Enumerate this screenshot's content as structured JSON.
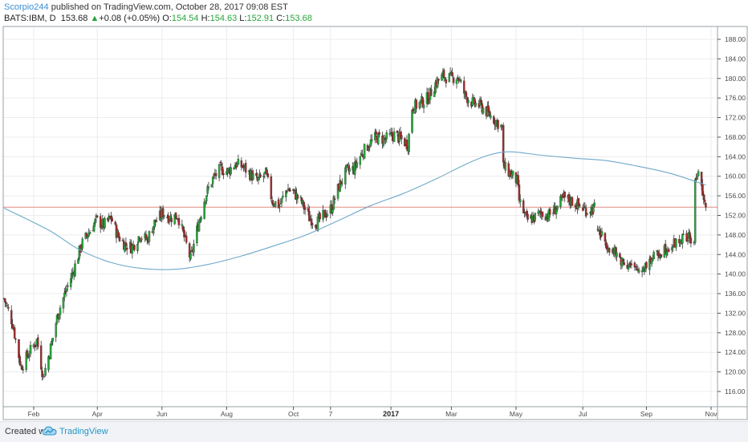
{
  "header": {
    "author": "Scorpio244",
    "publish_text": " published on TradingView.com, October 28, 2017 09:08 EST",
    "symbol": "BATS:IBM, D",
    "last": "153.68",
    "change_arrow": "▲",
    "change": "+0.08 (+0.05%)",
    "open_label": "O:",
    "open": "154.54",
    "high_label": "H:",
    "high": "154.63",
    "low_label": "L:",
    "low": "152.91",
    "close_label": "C:",
    "close": "153.68"
  },
  "footer": {
    "created_with": "Created with",
    "brand": "TradingView",
    "logo_icon": "tradingview-cloud-logo"
  },
  "colors": {
    "up": "#26a63a",
    "down": "#a52a2a",
    "wick": "#333333",
    "ma": "#6fa8c9",
    "last_price_line": "#e08a82",
    "grid": "#ececec",
    "axis": "#555555"
  },
  "chart_data": {
    "type": "candlestick",
    "title": "",
    "xlabel": "",
    "ylabel": "",
    "y_axis_side": "right",
    "ylim": [
      114,
      190
    ],
    "y_ticks": [
      "116.00",
      "120.00",
      "124.00",
      "128.00",
      "132.00",
      "136.00",
      "140.00",
      "144.00",
      "148.00",
      "152.00",
      "156.00",
      "160.00",
      "164.00",
      "168.00",
      "172.00",
      "176.00",
      "180.00",
      "184.00",
      "188.00"
    ],
    "x_ticks": [
      {
        "label": "Feb",
        "date": "2016-02-01",
        "bold": false
      },
      {
        "label": "Apr",
        "date": "2016-04-01",
        "bold": false
      },
      {
        "label": "Jun",
        "date": "2016-06-01",
        "bold": false
      },
      {
        "label": "Aug",
        "date": "2016-08-01",
        "bold": false
      },
      {
        "label": "Oct",
        "date": "2016-10-03",
        "bold": false
      },
      {
        "label": "7",
        "date": "2016-11-07",
        "bold": false
      },
      {
        "label": "2017",
        "date": "2017-01-03",
        "bold": true
      },
      {
        "label": "Mar",
        "date": "2017-03-01",
        "bold": false
      },
      {
        "label": "May",
        "date": "2017-05-01",
        "bold": false
      },
      {
        "label": "Jul",
        "date": "2017-07-03",
        "bold": false
      },
      {
        "label": "Sep",
        "date": "2017-09-01",
        "bold": false
      },
      {
        "label": "Nov",
        "date": "2017-11-01",
        "bold": false
      }
    ],
    "grid": true,
    "last_price_line": 153.68,
    "series": [
      {
        "kind": "price",
        "note": "daily close path (approximate)",
        "points": [
          [
            "2016-01-04",
            135.0
          ],
          [
            "2016-01-12",
            130.0
          ],
          [
            "2016-01-20",
            121.0
          ],
          [
            "2016-01-28",
            124.0
          ],
          [
            "2016-02-04",
            126.5
          ],
          [
            "2016-02-10",
            119.0
          ],
          [
            "2016-02-16",
            124.0
          ],
          [
            "2016-02-24",
            132.0
          ],
          [
            "2016-03-03",
            137.0
          ],
          [
            "2016-03-10",
            141.0
          ],
          [
            "2016-03-17",
            146.0
          ],
          [
            "2016-03-24",
            148.5
          ],
          [
            "2016-03-31",
            151.0
          ],
          [
            "2016-04-07",
            150.0
          ],
          [
            "2016-04-14",
            151.5
          ],
          [
            "2016-04-20",
            148.0
          ],
          [
            "2016-04-27",
            146.0
          ],
          [
            "2016-05-04",
            145.5
          ],
          [
            "2016-05-11",
            148.0
          ],
          [
            "2016-05-18",
            147.0
          ],
          [
            "2016-05-25",
            150.5
          ],
          [
            "2016-06-02",
            152.5
          ],
          [
            "2016-06-09",
            151.5
          ],
          [
            "2016-06-16",
            152.0
          ],
          [
            "2016-06-24",
            146.0
          ],
          [
            "2016-06-28",
            143.0
          ],
          [
            "2016-07-05",
            150.0
          ],
          [
            "2016-07-12",
            156.0
          ],
          [
            "2016-07-19",
            159.5
          ],
          [
            "2016-07-26",
            161.5
          ],
          [
            "2016-08-02",
            161.0
          ],
          [
            "2016-08-09",
            162.5
          ],
          [
            "2016-08-16",
            162.0
          ],
          [
            "2016-08-23",
            160.5
          ],
          [
            "2016-08-30",
            159.0
          ],
          [
            "2016-09-07",
            160.5
          ],
          [
            "2016-09-13",
            155.0
          ],
          [
            "2016-09-20",
            154.0
          ],
          [
            "2016-09-27",
            157.5
          ],
          [
            "2016-10-04",
            156.5
          ],
          [
            "2016-10-11",
            154.5
          ],
          [
            "2016-10-18",
            151.5
          ],
          [
            "2016-10-25",
            150.5
          ],
          [
            "2016-11-01",
            152.0
          ],
          [
            "2016-11-08",
            153.5
          ],
          [
            "2016-11-15",
            158.0
          ],
          [
            "2016-11-22",
            161.0
          ],
          [
            "2016-11-29",
            161.5
          ],
          [
            "2016-12-06",
            164.5
          ],
          [
            "2016-12-13",
            166.5
          ],
          [
            "2016-12-20",
            168.0
          ],
          [
            "2016-12-28",
            167.5
          ],
          [
            "2017-01-06",
            168.5
          ],
          [
            "2017-01-13",
            167.5
          ],
          [
            "2017-01-19",
            166.5
          ],
          [
            "2017-01-23",
            174.0
          ],
          [
            "2017-01-31",
            175.0
          ],
          [
            "2017-02-07",
            176.0
          ],
          [
            "2017-02-14",
            179.0
          ],
          [
            "2017-02-21",
            180.5
          ],
          [
            "2017-02-28",
            180.0
          ],
          [
            "2017-03-07",
            180.5
          ],
          [
            "2017-03-14",
            176.5
          ],
          [
            "2017-03-21",
            175.0
          ],
          [
            "2017-03-28",
            174.5
          ],
          [
            "2017-04-04",
            173.0
          ],
          [
            "2017-04-11",
            171.5
          ],
          [
            "2017-04-18",
            170.0
          ],
          [
            "2017-04-19",
            162.0
          ],
          [
            "2017-04-26",
            160.5
          ],
          [
            "2017-05-02",
            159.0
          ],
          [
            "2017-05-04",
            155.0
          ],
          [
            "2017-05-11",
            151.0
          ],
          [
            "2017-05-18",
            151.5
          ],
          [
            "2017-05-25",
            152.5
          ],
          [
            "2017-06-01",
            152.0
          ],
          [
            "2017-06-08",
            153.5
          ],
          [
            "2017-06-15",
            155.5
          ],
          [
            "2017-06-22",
            155.0
          ],
          [
            "2017-06-29",
            154.0
          ],
          [
            "2017-07-07",
            153.0
          ],
          [
            "2017-07-14",
            153.5
          ],
          [
            "2017-07-18",
            148.5
          ],
          [
            "2017-07-25",
            146.5
          ],
          [
            "2017-08-01",
            144.5
          ],
          [
            "2017-08-08",
            143.0
          ],
          [
            "2017-08-15",
            142.0
          ],
          [
            "2017-08-22",
            140.5
          ],
          [
            "2017-08-29",
            141.5
          ],
          [
            "2017-09-05",
            143.0
          ],
          [
            "2017-09-12",
            144.0
          ],
          [
            "2017-09-19",
            145.5
          ],
          [
            "2017-09-26",
            146.0
          ],
          [
            "2017-10-03",
            147.0
          ],
          [
            "2017-10-10",
            147.5
          ],
          [
            "2017-10-16",
            146.5
          ],
          [
            "2017-10-17",
            158.5
          ],
          [
            "2017-10-19",
            161.0
          ],
          [
            "2017-10-23",
            158.5
          ],
          [
            "2017-10-25",
            154.0
          ],
          [
            "2017-10-27",
            153.68
          ]
        ]
      },
      {
        "kind": "moving_average",
        "note": "smooth long-term moving average (approximate)",
        "points": [
          [
            "2016-01-04",
            153.5
          ],
          [
            "2016-02-15",
            149.0
          ],
          [
            "2016-03-15",
            145.0
          ],
          [
            "2016-04-15",
            142.3
          ],
          [
            "2016-05-15",
            141.1
          ],
          [
            "2016-06-15",
            141.0
          ],
          [
            "2016-07-15",
            142.0
          ],
          [
            "2016-08-15",
            143.7
          ],
          [
            "2016-09-15",
            145.8
          ],
          [
            "2016-10-15",
            148.0
          ],
          [
            "2016-11-15",
            151.0
          ],
          [
            "2016-12-15",
            154.0
          ],
          [
            "2017-01-15",
            156.5
          ],
          [
            "2017-02-15",
            159.5
          ],
          [
            "2017-03-15",
            162.5
          ],
          [
            "2017-04-05",
            164.3
          ],
          [
            "2017-04-25",
            165.0
          ],
          [
            "2017-05-25",
            164.3
          ],
          [
            "2017-06-25",
            163.7
          ],
          [
            "2017-07-25",
            163.2
          ],
          [
            "2017-08-25",
            162.0
          ],
          [
            "2017-09-25",
            160.5
          ],
          [
            "2017-10-27",
            158.2
          ]
        ]
      }
    ]
  }
}
